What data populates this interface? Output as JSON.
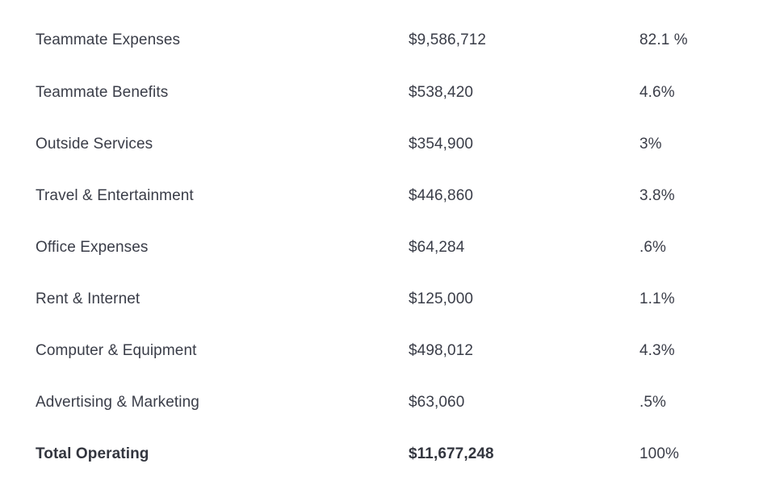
{
  "expenses": {
    "rows": [
      {
        "category": "Teammate Expenses",
        "amount": "$9,586,712",
        "percent": "82.1 %"
      },
      {
        "category": "Teammate Benefits",
        "amount": "$538,420",
        "percent": "4.6%"
      },
      {
        "category": "Outside Services",
        "amount": "$354,900",
        "percent": "3%"
      },
      {
        "category": "Travel & Entertainment",
        "amount": "$446,860",
        "percent": "3.8%"
      },
      {
        "category": "Office Expenses",
        "amount": "$64,284",
        "percent": ".6%"
      },
      {
        "category": "Rent & Internet",
        "amount": "$125,000",
        "percent": "1.1%"
      },
      {
        "category": "Computer & Equipment",
        "amount": "$498,012",
        "percent": "4.3%"
      },
      {
        "category": "Advertising & Marketing",
        "amount": "$63,060",
        "percent": ".5%"
      }
    ],
    "total": {
      "category": "Total Operating",
      "amount": "$11,677,248",
      "percent": "100%"
    }
  }
}
